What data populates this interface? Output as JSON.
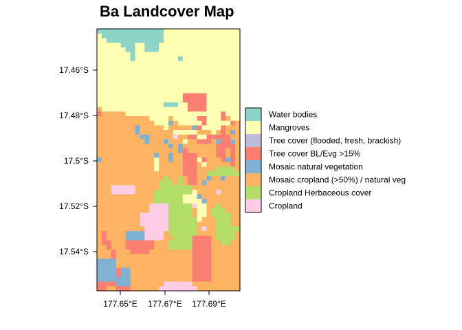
{
  "title": "Ba Landcover Map",
  "chart_data": {
    "type": "heatmap",
    "title": "Ba Landcover Map",
    "xlabel": "",
    "ylabel": "",
    "x_ticks": [
      "177.65°E",
      "177.67°E",
      "177.69°E"
    ],
    "y_ticks": [
      "17.46°S",
      "17.48°S",
      "17.5°S",
      "17.52°S",
      "17.54°S"
    ],
    "legend_position": "right",
    "classes": [
      {
        "code": "W",
        "name": "Water bodies",
        "color": "#8DD3C7"
      },
      {
        "code": "M",
        "name": "Mangroves",
        "color": "#FFFFB3"
      },
      {
        "code": "T",
        "name": "Tree cover (flooded, fresh, brackish)",
        "color": "#BEBADA"
      },
      {
        "code": "E",
        "name": "Tree cover BL/Evg >15%",
        "color": "#FB8072"
      },
      {
        "code": "N",
        "name": "Mosaic natural vegetation",
        "color": "#80B1D3"
      },
      {
        "code": "O",
        "name": "Mosaic cropland (>50%) / natural veg",
        "color": "#FDB462"
      },
      {
        "code": "H",
        "name": "Cropland Herbaceous cover",
        "color": "#B3DE69"
      },
      {
        "code": "C",
        "name": "Cropland",
        "color": "#FCCDE5"
      }
    ],
    "grid_cols": 30,
    "grid": [
      "WWWWWWWWWWWWWWMMMMMMMMMMMMMMMM",
      "MWWWWWWWWWWWWWMMMMMMMMMMMMMMMM",
      "MMWWWWWWWWWWWWMMMMMMMMMMMMMMMM",
      "MMMMMWWWMMWWWMMMMMMMMMMMMMMMMM",
      "MMMMMMWWMMWWWMMMMMMMMMMMMMMMMM",
      "MMMMMMMWMMMMMMMMMMMMMMMMMMMMMM",
      "MMMMMMMWMMMMMMMMMWMMMMMMMMMMMM",
      "MMMMMMMMMMMMMMMMMMMMMMMMMMMMMM",
      "MMMMMMMMMMMMMMMMMMMMMMMMMMMMMM",
      "MMMMMMMMMMMMMMMMMMMMMMMMMMMMMM",
      "MMMMMMMMMMMMMMMMMMMMMMMMMMMMMM",
      "MMMMMMMMMMMMMMMMMMMMMMMMMMMMMM",
      "MMMMMMMMMMMMMMMMMMMMMMMMMMMMMM",
      "MMMMMMMMMMMMMMMMMMMMMMMMMMMMMM",
      "MMMMMMMMMMMMMMMMMMEEEEEMMMMMMM",
      "MMMMMMMMMMMMMMMMMMEEEEEMMMMMMM",
      "MMMMMMMMMMMMMMWWWMMEEEEMMMMMMM",
      "OMMMMMMMMMMMMMMMMMMEEEEMMMMMMM",
      "EOOOOOMMMMMMMMMMMMMMMMMMMMEMMM",
      "OOOOOOOOOOOMMMMOMMMMMEEMMMEOMM",
      "OOOOOOOOOOOOMMMNOMMMMMEMMMMMEO",
      "OOOOOOOONOOOOOMOOOOONEMMMMEOOO",
      "OOOOOOOONOOOOOOOMMMMMOOOMOEONO",
      "OOOOOOOOONNOOOOOCOOEEMMEEEEEOO",
      "OOOOOOOOOONOOONOOOMOOEEEONEENO",
      "OOOOOOOOOOOOOOONONOOOOOOOEEEEO",
      "OOOOOOOOOOOOOOOOONEOOOOOOEEOEO",
      "OOOOOOOOOOOONOONOOEEEOOOOEEOEO",
      "NOOOOOOOOOOOMOONOOEEEMEOOOENEO",
      "OOOOOOOOOOOOMOOOOOEEEOMOOOOOEO",
      "OOOOOOOOOOOOMOOOOOEEEOOOOHHHHO",
      "OOOOOOOOOOOOOOOOOOEEEOOHHHHHHH",
      "OOOOOOOOOOOOOOHOOHOEEOONOONOOO",
      "OOOOOOOOOOOOOHHHOHOEEONOOOOOOO",
      "OOOCCCCCOOOOOHHHHHHHOOOOOOOOOO",
      "OOOCCCCCOOOOHHHHHHHHMOOOOCOOOO",
      "OOOOOOOOOOOOHHHHHHMMMNOOOOOOOO",
      "OOOOOOOOOOOOHHHHHHMMMMNOOOOOOO",
      "OOOOOOOOOOOCCCCHHHHHCMMOOHOOOO",
      "OOOOOOOOOOOCCCCHHHHHOMMOHHHOOO",
      "OOOOOOOOOCCCCCCHHHHHOMMOHHHHOO",
      "OOOOOOOOOCCCCCCHHHHHHMOOOHHHOO",
      "OOOOOOOOOCCCCCCHHHHHHOOOOHHHOO",
      "OOOOOOOOOOCCCCCHHHHHHOCOOHHHHH",
      "OEOOOONNNNCCCCOHHHHHHOOOOHHHHO",
      "OEOOOONNNNCCCCOOHHHHEEEEOHHHHO",
      "OEEOOOEEEEEEOOOHHHHHEEEEOOHHOO",
      "OOEOOOEEEEEEOOOHHHHHEEEEOOOOOO",
      "OOOEOOOEEEEOOOOOOOOOEEEEOOOOOO",
      "OOOEOOOOOOOOOOOOOOOOEEEEOOOOOO",
      "NNNNOOOOOOOOOOOOOOOOEEEEOOOOOO",
      "NNNNOOOOOOOOOOOOOOOOEEEEOOOOOO",
      "NNNNENNOOOOOOOOOOOOOEEEEOOOOOO",
      "NNNNENNOOOOOOOOOOOOOEEEEOOOOOO",
      "NNNNNNNOOOOOOOOOOOOOEEEEOOOOOO",
      "EEEENNNOOOOOOOCCCCCCOOOOOOOOOO",
      "EEOOEEEOOOOOOCCCCCCCCOOOOOOOOO"
    ]
  }
}
